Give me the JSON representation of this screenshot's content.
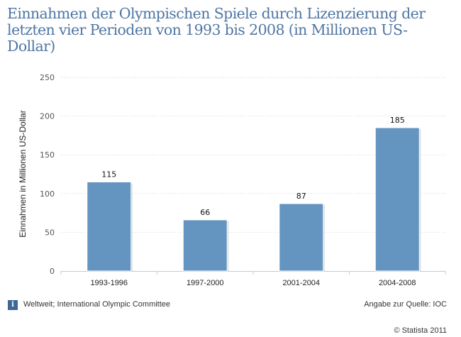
{
  "chart_data": {
    "type": "bar",
    "title": "Einnahmen der Olympischen Spiele durch Lizenzierung der letzten vier Perioden von 1993 bis 2008 (in Millionen US-Dollar)",
    "xlabel": "",
    "ylabel": "Einnahmen in Millionen US-Dollar",
    "categories": [
      "1993-1996",
      "1997-2000",
      "2001-2004",
      "2004-2008"
    ],
    "values": [
      115,
      66,
      87,
      185
    ],
    "ylim": [
      0,
      250
    ],
    "yticks": [
      0,
      50,
      100,
      150,
      200,
      250
    ],
    "grid": true,
    "bar_color": "#6495c0"
  },
  "footer": {
    "info_icon": "i",
    "region_source": "Weltweit; International Olympic Committee",
    "source_note": "Angabe zur Quelle: IOC",
    "copyright": "© Statista 2011"
  }
}
